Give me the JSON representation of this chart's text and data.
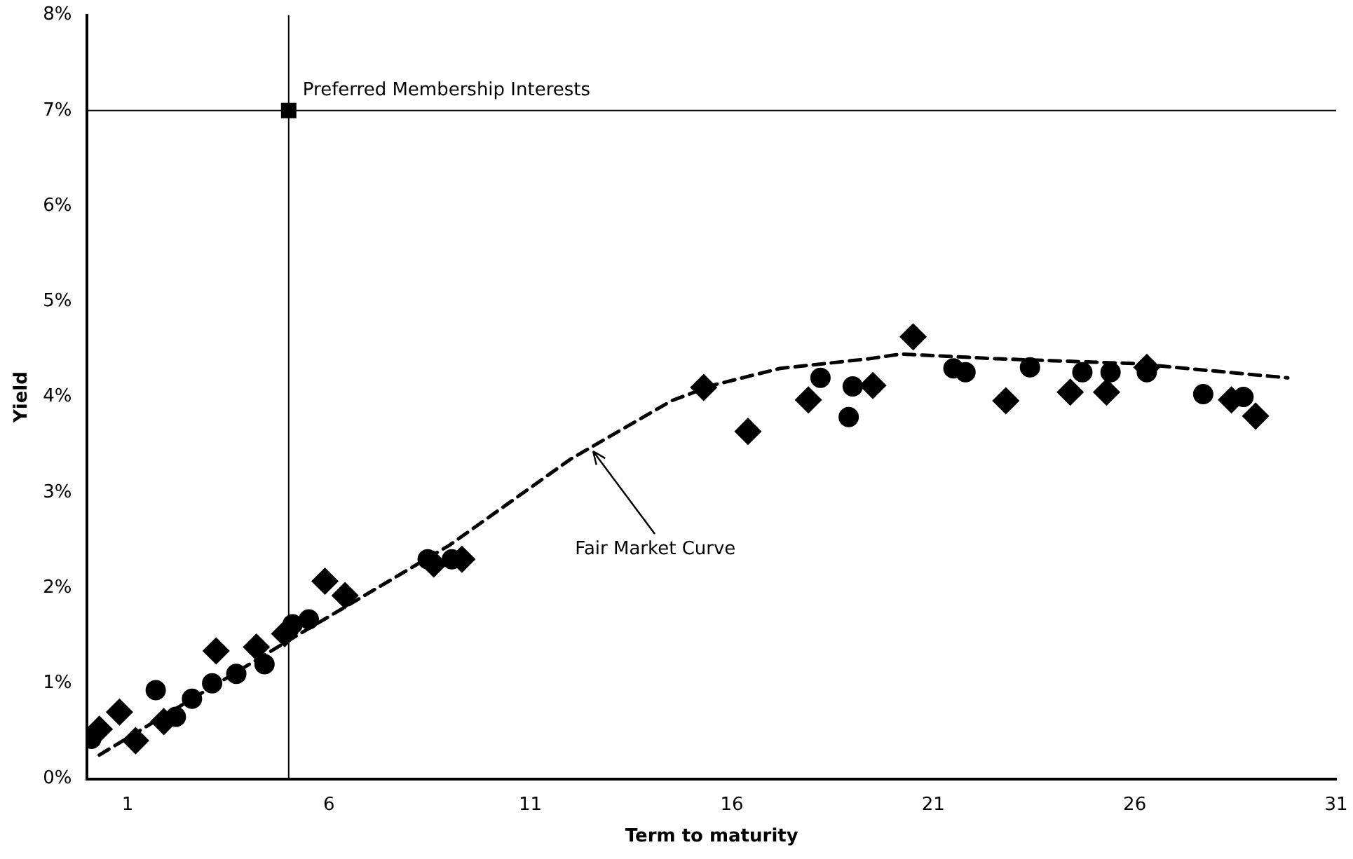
{
  "chart_data": {
    "type": "scatter",
    "xlabel": "Term to maturity",
    "ylabel": "Yield",
    "xlim": [
      0,
      31
    ],
    "xticks": [
      1,
      6,
      11,
      16,
      21,
      26,
      31
    ],
    "ylim": [
      0,
      8
    ],
    "yticks": [
      {
        "value": 0,
        "label": "0%"
      },
      {
        "value": 1,
        "label": "1%"
      },
      {
        "value": 2,
        "label": "2%"
      },
      {
        "value": 3,
        "label": "3%"
      },
      {
        "value": 4,
        "label": "4%"
      },
      {
        "value": 5,
        "label": "5%"
      },
      {
        "value": 6,
        "label": "6%"
      },
      {
        "value": 7,
        "label": "7%"
      },
      {
        "value": 8,
        "label": "8%"
      }
    ],
    "grid": false,
    "legend": false,
    "ref_lines": [
      {
        "axis": "x",
        "value": 5,
        "color": "#000000"
      },
      {
        "axis": "y",
        "value": 7,
        "color": "#000000"
      }
    ],
    "annotations": [
      {
        "text": "Preferred Membership Interests",
        "x": 5,
        "y": 7
      },
      {
        "text": "Fair Market Curve",
        "x": 12.5,
        "y": 3.47
      }
    ],
    "series": [
      {
        "type": "line",
        "color": "#000000",
        "marker": "none",
        "line_style": "dashed",
        "x": [
          0.3,
          5,
          9,
          12,
          14.5,
          15.5,
          17.2,
          19.4,
          20.2,
          22.6,
          26,
          29.8
        ],
        "values": [
          0.25,
          1.45,
          2.45,
          3.35,
          3.96,
          4.12,
          4.3,
          4.4,
          4.45,
          4.4,
          4.35,
          4.2
        ]
      },
      {
        "color": "#000000",
        "marker": "circle",
        "x": [
          0.1,
          1.7,
          2.2,
          2.6,
          3.1,
          3.7,
          4.4,
          5.1,
          5.5,
          8.45,
          9.05,
          18.2,
          18.9,
          19.0,
          21.5,
          21.8,
          23.4,
          24.7,
          25.4,
          26.3,
          27.7,
          28.7
        ],
        "values": [
          0.42,
          0.93,
          0.65,
          0.84,
          1.0,
          1.1,
          1.2,
          1.62,
          1.67,
          2.3,
          2.3,
          4.2,
          3.79,
          4.11,
          4.3,
          4.26,
          4.31,
          4.26,
          4.26,
          4.26,
          4.03,
          4.0
        ]
      },
      {
        "color": "#000000",
        "marker": "diamond",
        "x": [
          0.3,
          0.8,
          1.2,
          1.9,
          3.2,
          4.2,
          4.9,
          5.9,
          6.4,
          8.6,
          9.3,
          15.3,
          16.4,
          17.9,
          19.5,
          20.5,
          22.8,
          24.4,
          25.3,
          26.3,
          28.4,
          29.0
        ],
        "values": [
          0.52,
          0.7,
          0.4,
          0.6,
          1.34,
          1.38,
          1.52,
          2.07,
          1.92,
          2.25,
          2.3,
          4.1,
          3.64,
          3.97,
          4.12,
          4.63,
          3.96,
          4.05,
          4.05,
          4.31,
          3.97,
          3.8
        ]
      },
      {
        "color": "#000000",
        "marker": "square",
        "x": [
          5
        ],
        "values": [
          7
        ]
      }
    ]
  }
}
